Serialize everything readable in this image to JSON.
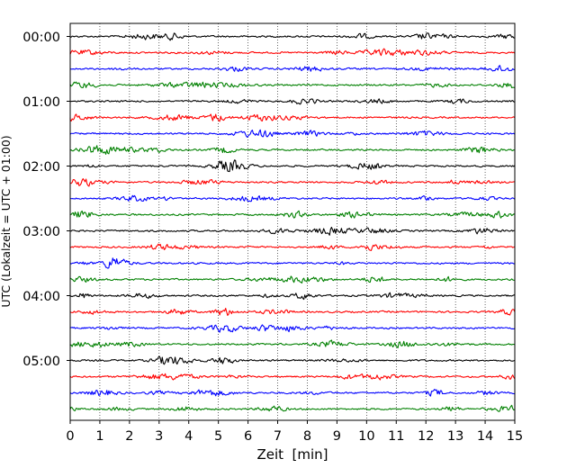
{
  "chart_data": {
    "type": "line",
    "title": "",
    "xlabel": "Zeit  [min]",
    "ylabel": "UTC (Lokalzeit = UTC + 01:00)",
    "xlim": [
      0,
      15
    ],
    "x_ticks": [
      "0",
      "1",
      "2",
      "3",
      "4",
      "5",
      "6",
      "7",
      "8",
      "9",
      "10",
      "11",
      "12",
      "13",
      "14",
      "15"
    ],
    "y_tick_labels": [
      "00:00",
      "01:00",
      "02:00",
      "03:00",
      "04:00",
      "05:00"
    ],
    "grid": "vertical dotted lines at each minute",
    "trace_interval_minutes": 15,
    "trace_colors": [
      "#000000",
      "#ff0000",
      "#0000ff",
      "#008000"
    ],
    "trace_start_times": [
      "00:00",
      "00:15",
      "00:30",
      "00:45",
      "01:00",
      "01:15",
      "01:30",
      "01:45",
      "02:00",
      "02:15",
      "02:30",
      "02:45",
      "03:00",
      "03:15",
      "03:30",
      "03:45",
      "04:00",
      "04:15",
      "04:30",
      "04:45",
      "05:00",
      "05:15",
      "05:30",
      "05:45"
    ]
  }
}
